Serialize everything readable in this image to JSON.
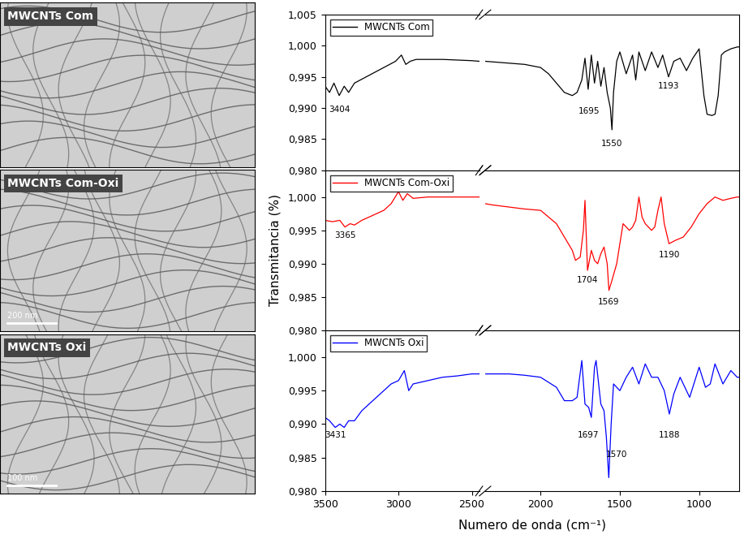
{
  "images": [
    {
      "label": "MWCNTs Com"
    },
    {
      "label": "MWCNTs Com-Oxi",
      "scale_bar": "200 nm"
    },
    {
      "label": "MWCNTs Oxi",
      "scale_bar": "100 nm"
    }
  ],
  "chart_data": [
    {
      "type": "line",
      "tick_labels": "y",
      "legend": "upper left",
      "xlim": [
        3500,
        750
      ],
      "x_break": [
        2450,
        2350
      ],
      "xticks": [
        3500,
        3000,
        2500,
        2000,
        1500,
        1000
      ],
      "ylim": [
        0.98,
        1.005
      ],
      "yticks": [
        {
          "value": 0.98,
          "label": "0,980"
        },
        {
          "value": 0.985,
          "label": "0,985"
        },
        {
          "value": 0.99,
          "label": "0,990"
        },
        {
          "value": 0.995,
          "label": "0,995"
        },
        {
          "value": 1.0,
          "label": "1,000"
        },
        {
          "value": 1.005,
          "label": "1,005"
        }
      ],
      "series": [
        {
          "name": "MWCNTs Com",
          "color": "#000000",
          "x": [
            3500,
            3470,
            3440,
            3404,
            3370,
            3340,
            3300,
            3260,
            3220,
            3180,
            3140,
            3100,
            3060,
            3020,
            2980,
            2950,
            2920,
            2880,
            2800,
            2700,
            2600,
            2500,
            2450,
            2350,
            2300,
            2200,
            2100,
            2000,
            1950,
            1900,
            1850,
            1800,
            1770,
            1740,
            1720,
            1700,
            1680,
            1660,
            1640,
            1620,
            1600,
            1580,
            1560,
            1550,
            1540,
            1520,
            1500,
            1460,
            1420,
            1400,
            1380,
            1340,
            1300,
            1260,
            1230,
            1193,
            1160,
            1120,
            1080,
            1040,
            1000,
            970,
            950,
            920,
            900,
            880,
            860,
            840,
            800,
            760,
            750
          ],
          "values": [
            0.9935,
            0.9925,
            0.994,
            0.992,
            0.9935,
            0.9925,
            0.994,
            0.9945,
            0.995,
            0.9955,
            0.996,
            0.9965,
            0.997,
            0.9975,
            0.9985,
            0.997,
            0.9975,
            0.9978,
            0.9978,
            0.9978,
            0.9977,
            0.9976,
            0.9975,
            0.9975,
            0.9974,
            0.9972,
            0.997,
            0.9965,
            0.9955,
            0.994,
            0.9925,
            0.992,
            0.9925,
            0.9945,
            0.998,
            0.993,
            0.9985,
            0.994,
            0.9975,
            0.9935,
            0.9965,
            0.9925,
            0.99,
            0.9865,
            0.9925,
            0.9975,
            0.999,
            0.9955,
            0.9985,
            0.9945,
            0.999,
            0.996,
            0.999,
            0.9965,
            0.9985,
            0.995,
            0.9975,
            0.998,
            0.996,
            0.998,
            0.9995,
            0.992,
            0.989,
            0.9888,
            0.989,
            0.992,
            0.9985,
            0.999,
            0.9995,
            0.9998,
            0.9998
          ]
        }
      ],
      "annotations": [
        {
          "text": "3404",
          "x": 3404,
          "y": 0.9898
        },
        {
          "text": "1695",
          "x": 1695,
          "y": 0.9895
        },
        {
          "text": "1550",
          "x": 1550,
          "y": 0.9843
        },
        {
          "text": "1193",
          "x": 1193,
          "y": 0.9935
        }
      ]
    },
    {
      "type": "line",
      "tick_labels": "y",
      "legend": "upper left",
      "ylabel": "Transmitancia (%)",
      "xlim": [
        3500,
        750
      ],
      "x_break": [
        2450,
        2350
      ],
      "xticks": [
        3500,
        3000,
        2500,
        2000,
        1500,
        1000
      ],
      "ylim": [
        0.98,
        1.004
      ],
      "yticks": [
        {
          "value": 0.98,
          "label": "0,980"
        },
        {
          "value": 0.985,
          "label": "0,985"
        },
        {
          "value": 0.99,
          "label": "0,990"
        },
        {
          "value": 0.995,
          "label": "0,995"
        },
        {
          "value": 1.0,
          "label": "1,000"
        }
      ],
      "series": [
        {
          "name": "MWCNTs Com-Oxi",
          "color": "#ff0000",
          "x": [
            3500,
            3450,
            3400,
            3365,
            3330,
            3300,
            3250,
            3200,
            3150,
            3100,
            3050,
            3000,
            2970,
            2940,
            2900,
            2800,
            2700,
            2600,
            2500,
            2450,
            2350,
            2300,
            2200,
            2100,
            2000,
            1900,
            1850,
            1800,
            1780,
            1750,
            1730,
            1720,
            1704,
            1680,
            1660,
            1640,
            1620,
            1600,
            1580,
            1569,
            1550,
            1520,
            1480,
            1440,
            1420,
            1400,
            1380,
            1360,
            1340,
            1300,
            1280,
            1260,
            1240,
            1220,
            1190,
            1150,
            1100,
            1050,
            1000,
            950,
            900,
            850,
            800,
            760,
            750
          ],
          "values": [
            0.9965,
            0.9963,
            0.9965,
            0.9955,
            0.996,
            0.9958,
            0.9965,
            0.997,
            0.9975,
            0.998,
            0.999,
            1.0008,
            0.9995,
            1.0005,
            0.9998,
            1.0,
            1.0,
            1.0,
            1.0,
            1.0,
            0.999,
            0.9988,
            0.9985,
            0.9982,
            0.998,
            0.996,
            0.994,
            0.992,
            0.9905,
            0.991,
            0.995,
            0.9995,
            0.989,
            0.992,
            0.9905,
            0.99,
            0.9915,
            0.9925,
            0.99,
            0.986,
            0.9875,
            0.99,
            0.996,
            0.995,
            0.9955,
            0.9965,
            1.0,
            0.997,
            0.996,
            0.995,
            0.9955,
            0.998,
            1.0,
            0.996,
            0.993,
            0.9935,
            0.994,
            0.9955,
            0.9975,
            0.999,
            1.0,
            0.9995,
            0.9998,
            1.0,
            1.0
          ]
        }
      ],
      "annotations": [
        {
          "text": "3365",
          "x": 3365,
          "y": 0.9943
        },
        {
          "text": "1704",
          "x": 1704,
          "y": 0.9875
        },
        {
          "text": "1569",
          "x": 1569,
          "y": 0.9843
        },
        {
          "text": "1190",
          "x": 1190,
          "y": 0.9913
        }
      ]
    },
    {
      "type": "line",
      "legend": "upper left",
      "xlabel": "Numero de onda (cm⁻¹)",
      "xlim": [
        3500,
        750
      ],
      "x_break": [
        2450,
        2350
      ],
      "xticks": [
        3500,
        3000,
        2500,
        2000,
        1500,
        1000
      ],
      "ylim": [
        0.98,
        1.004
      ],
      "yticks": [
        {
          "value": 0.98,
          "label": "0,980"
        },
        {
          "value": 0.985,
          "label": "0,985"
        },
        {
          "value": 0.99,
          "label": "0,990"
        },
        {
          "value": 0.995,
          "label": "0,995"
        },
        {
          "value": 1.0,
          "label": "1,000"
        }
      ],
      "series": [
        {
          "name": "MWCNTs Oxi",
          "color": "#0000ff",
          "x": [
            3500,
            3470,
            3431,
            3400,
            3370,
            3340,
            3300,
            3250,
            3200,
            3150,
            3100,
            3050,
            3000,
            2960,
            2930,
            2900,
            2800,
            2700,
            2600,
            2500,
            2450,
            2350,
            2300,
            2200,
            2100,
            2000,
            1900,
            1850,
            1800,
            1770,
            1740,
            1720,
            1697,
            1680,
            1660,
            1650,
            1620,
            1600,
            1585,
            1570,
            1555,
            1540,
            1500,
            1460,
            1420,
            1380,
            1340,
            1300,
            1260,
            1220,
            1188,
            1160,
            1120,
            1060,
            1000,
            960,
            930,
            900,
            850,
            800,
            760,
            750
          ],
          "values": [
            0.991,
            0.9905,
            0.9895,
            0.99,
            0.9895,
            0.9905,
            0.9905,
            0.992,
            0.993,
            0.994,
            0.995,
            0.996,
            0.9965,
            0.998,
            0.995,
            0.996,
            0.9965,
            0.997,
            0.9972,
            0.9975,
            0.9975,
            0.9975,
            0.9975,
            0.9975,
            0.9973,
            0.997,
            0.9955,
            0.9935,
            0.9935,
            0.994,
            0.9995,
            0.993,
            0.9925,
            0.991,
            0.9985,
            0.9995,
            0.993,
            0.992,
            0.988,
            0.982,
            0.99,
            0.996,
            0.995,
            0.997,
            0.9985,
            0.996,
            0.999,
            0.997,
            0.997,
            0.995,
            0.9915,
            0.9945,
            0.997,
            0.994,
            0.9985,
            0.9955,
            0.996,
            0.999,
            0.996,
            0.998,
            0.997,
            0.997
          ]
        }
      ],
      "annotations": [
        {
          "text": "3431",
          "x": 3431,
          "y": 0.9883
        },
        {
          "text": "1697",
          "x": 1697,
          "y": 0.9883
        },
        {
          "text": "1570",
          "x": 1520,
          "y": 0.9855
        },
        {
          "text": "1188",
          "x": 1188,
          "y": 0.9883
        }
      ]
    }
  ]
}
